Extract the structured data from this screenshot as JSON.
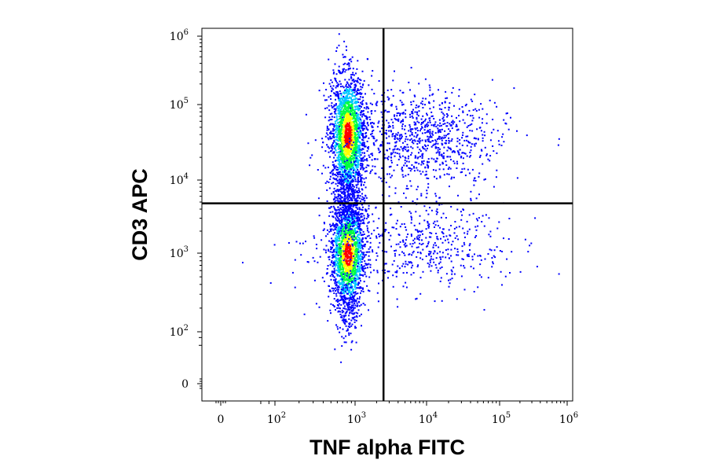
{
  "chart_data": {
    "type": "scatter",
    "subtype": "flow-cytometry-density-dot-plot",
    "title": "",
    "xlabel": "TNF alpha FITC",
    "ylabel": "CD3 APC",
    "x_scale": "biexponential",
    "y_scale": "biexponential",
    "x_ticks": [
      {
        "value": 0,
        "base": "0",
        "exp": ""
      },
      {
        "value": 100,
        "base": "10",
        "exp": "2"
      },
      {
        "value": 1000,
        "base": "10",
        "exp": "3"
      },
      {
        "value": 10000,
        "base": "10",
        "exp": "4"
      },
      {
        "value": 100000,
        "base": "10",
        "exp": "5"
      },
      {
        "value": 1000000,
        "base": "10",
        "exp": "6"
      }
    ],
    "y_ticks": [
      {
        "value": 0,
        "base": "0",
        "exp": ""
      },
      {
        "value": 100,
        "base": "10",
        "exp": "2"
      },
      {
        "value": 1000,
        "base": "10",
        "exp": "3"
      },
      {
        "value": 10000,
        "base": "10",
        "exp": "4"
      },
      {
        "value": 100000,
        "base": "10",
        "exp": "5"
      },
      {
        "value": 1000000,
        "base": "10",
        "exp": "6"
      }
    ],
    "quadrant_gates": {
      "x": 2500,
      "y": 4800
    },
    "populations": [
      {
        "x_center": 800,
        "y_center": 40000,
        "density": "peak"
      },
      {
        "x_center": 800,
        "y_center": 1000,
        "density": "peak"
      },
      {
        "x_center": 10000,
        "y_center": 40000,
        "density": "sparse"
      },
      {
        "x_center": 10000,
        "y_center": 1200,
        "density": "sparse"
      }
    ],
    "grid": false,
    "legend": "none",
    "colors": {
      "low_density": "#0000ff",
      "mid_density": "#00c8ff",
      "high_density": "#00ff40",
      "higher_density": "#ffff00",
      "peak_density": "#ff0000",
      "gate_line": "#000000"
    }
  }
}
